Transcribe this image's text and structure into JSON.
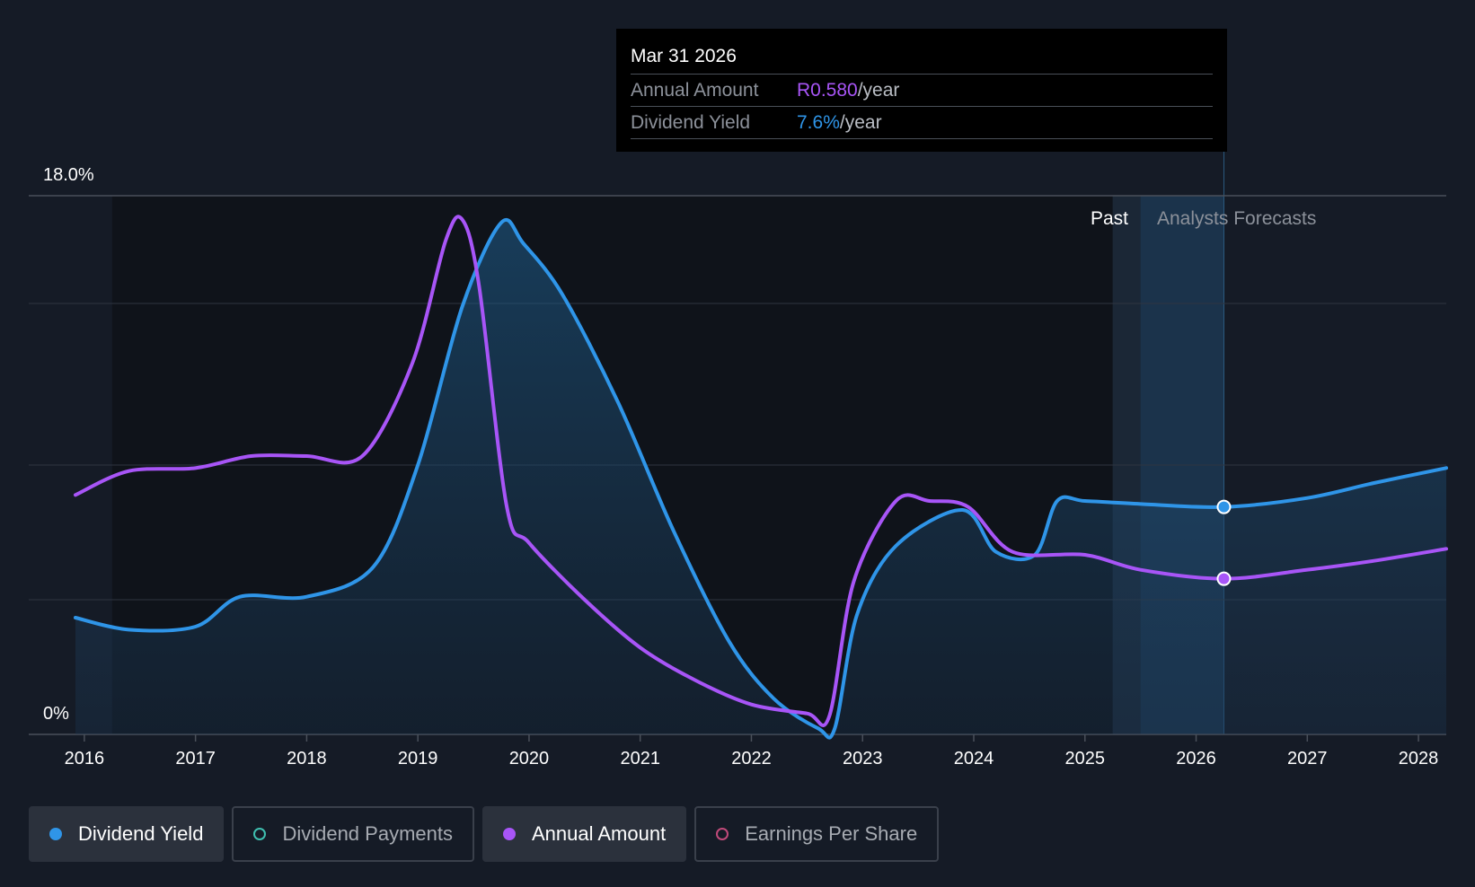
{
  "tooltip": {
    "date": "Mar 31 2026",
    "amount_label": "Annual Amount",
    "amount_value": "R0.580",
    "amount_unit": "/year",
    "yield_label": "Dividend Yield",
    "yield_value": "7.6%",
    "yield_unit": "/year"
  },
  "legend": [
    {
      "label": "Dividend Yield",
      "color": "#2f95e8",
      "active": true,
      "filled": true
    },
    {
      "label": "Dividend Payments",
      "color": "#3fbfb0",
      "active": false,
      "filled": false
    },
    {
      "label": "Annual Amount",
      "color": "#a855f7",
      "active": true,
      "filled": true
    },
    {
      "label": "Earnings Per Share",
      "color": "#c04a7a",
      "active": false,
      "filled": false
    }
  ],
  "chart_data": {
    "type": "line",
    "title": "",
    "xlabel": "",
    "ylabel": "",
    "ylim": [
      0,
      18
    ],
    "xlim": [
      2015.5,
      2028.25
    ],
    "y_tick_labels": [
      "0%",
      "18.0%"
    ],
    "x_tick_labels": [
      "2016",
      "2017",
      "2018",
      "2019",
      "2020",
      "2021",
      "2022",
      "2023",
      "2024",
      "2025",
      "2026",
      "2027",
      "2028"
    ],
    "past_label": "Past",
    "forecast_label": "Analysts Forecasts",
    "forecast_start": 2025.25,
    "highlight_x": 2026.25,
    "series": [
      {
        "name": "Dividend Yield",
        "color": "#2f95e8",
        "fill": true,
        "x": [
          2015.92,
          2016.4,
          2017.0,
          2017.4,
          2018.0,
          2018.6,
          2019.0,
          2019.4,
          2019.75,
          2019.95,
          2020.3,
          2020.8,
          2021.3,
          2021.8,
          2022.2,
          2022.6,
          2022.75,
          2022.95,
          2023.3,
          2023.9,
          2024.2,
          2024.55,
          2024.75,
          2025.0,
          2025.5,
          2026.25,
          2027.0,
          2027.6,
          2028.25
        ],
        "values": [
          3.9,
          3.5,
          3.6,
          4.6,
          4.6,
          5.6,
          9.0,
          14.3,
          17.1,
          16.4,
          14.7,
          11.1,
          6.8,
          3.1,
          1.2,
          0.2,
          0.2,
          4.0,
          6.3,
          7.5,
          6.1,
          6.0,
          7.8,
          7.8,
          7.7,
          7.6,
          7.9,
          8.4,
          8.9
        ]
      },
      {
        "name": "Annual Amount",
        "color": "#a855f7",
        "fill": false,
        "x": [
          2015.92,
          2016.4,
          2017.0,
          2017.5,
          2018.0,
          2018.5,
          2018.95,
          2019.25,
          2019.4,
          2019.55,
          2019.8,
          2020.0,
          2020.5,
          2021.0,
          2021.5,
          2022.0,
          2022.5,
          2022.7,
          2022.92,
          2023.3,
          2023.6,
          2023.95,
          2024.35,
          2025.0,
          2025.5,
          2026.25,
          2027.0,
          2027.6,
          2028.25
        ],
        "values": [
          8.0,
          8.8,
          8.9,
          9.3,
          9.3,
          9.3,
          12.4,
          16.5,
          17.2,
          15.0,
          7.6,
          6.4,
          4.5,
          2.9,
          1.8,
          1.0,
          0.7,
          0.6,
          5.1,
          7.8,
          7.8,
          7.6,
          6.1,
          6.0,
          5.5,
          5.2,
          5.5,
          5.8,
          6.2
        ]
      }
    ]
  }
}
